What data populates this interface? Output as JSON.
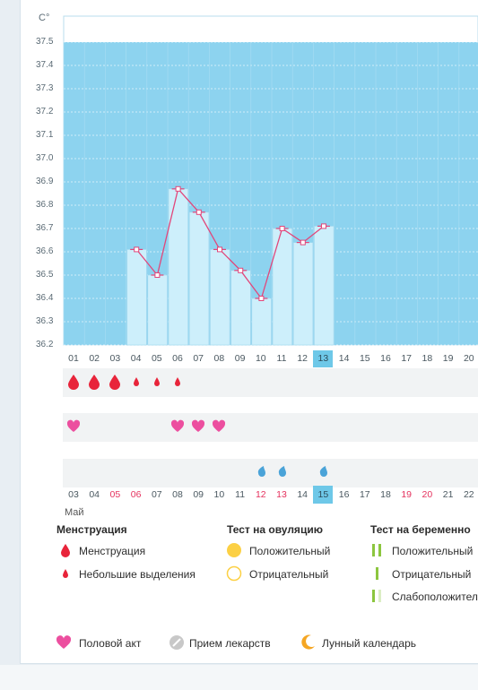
{
  "chart_data": {
    "type": "line",
    "y_unit": "C°",
    "ylim": [
      36.2,
      37.5
    ],
    "y_ticks": [
      "37.5",
      "37.4",
      "37.3",
      "37.2",
      "37.1",
      "37.0",
      "36.9",
      "36.8",
      "36.7",
      "36.6",
      "36.5",
      "36.4",
      "36.3",
      "36.2"
    ],
    "x_labels": [
      "01",
      "02",
      "03",
      "04",
      "05",
      "06",
      "07",
      "08",
      "09",
      "10",
      "11",
      "12",
      "13",
      "14",
      "15",
      "16",
      "17",
      "18",
      "19",
      "20"
    ],
    "highlight_index": 12,
    "points": [
      {
        "day": "04",
        "value": 36.61
      },
      {
        "day": "05",
        "value": 36.5
      },
      {
        "day": "06",
        "value": 36.87
      },
      {
        "day": "07",
        "value": 36.77
      },
      {
        "day": "08",
        "value": 36.61
      },
      {
        "day": "09",
        "value": 36.52
      },
      {
        "day": "10",
        "value": 36.4
      },
      {
        "day": "11",
        "value": 36.7
      },
      {
        "day": "12",
        "value": 36.64
      },
      {
        "day": "13",
        "value": 36.71
      }
    ],
    "colors": {
      "fill": "#8dd3ef",
      "bar": "#cdeffb",
      "line": "#e2467a"
    }
  },
  "dates_row": [
    {
      "t": "03",
      "red": false
    },
    {
      "t": "04",
      "red": false
    },
    {
      "t": "05",
      "red": true
    },
    {
      "t": "06",
      "red": true
    },
    {
      "t": "07",
      "red": false
    },
    {
      "t": "08",
      "red": false
    },
    {
      "t": "09",
      "red": false
    },
    {
      "t": "10",
      "red": false
    },
    {
      "t": "11",
      "red": false
    },
    {
      "t": "12",
      "red": true
    },
    {
      "t": "13",
      "red": true
    },
    {
      "t": "14",
      "red": false
    },
    {
      "t": "15",
      "red": false,
      "hl": true
    },
    {
      "t": "16",
      "red": false
    },
    {
      "t": "17",
      "red": false
    },
    {
      "t": "18",
      "red": false
    },
    {
      "t": "19",
      "red": true
    },
    {
      "t": "20",
      "red": true
    },
    {
      "t": "21",
      "red": false
    },
    {
      "t": "22",
      "red": false
    }
  ],
  "month_label": "Май",
  "markers": {
    "menstruation_big": [
      0,
      1,
      2
    ],
    "menstruation_small": [
      3,
      4,
      5
    ],
    "hearts": [
      0,
      5,
      6,
      7
    ],
    "drops": [
      9,
      10,
      12
    ]
  },
  "legend": {
    "col1_title": "Менструация",
    "col1_items": [
      "Менструация",
      "Небольшие выделения"
    ],
    "col2_title": "Тест на овуляцию",
    "col2_items": [
      "Положительный",
      "Отрицательный"
    ],
    "col3_title": "Тест на беременно",
    "col3_items": [
      "Положительный",
      "Отрицательный",
      "Слабоположител"
    ],
    "bottom_items": [
      "Половой акт",
      "Прием лекарств",
      "Лунный календарь"
    ]
  }
}
